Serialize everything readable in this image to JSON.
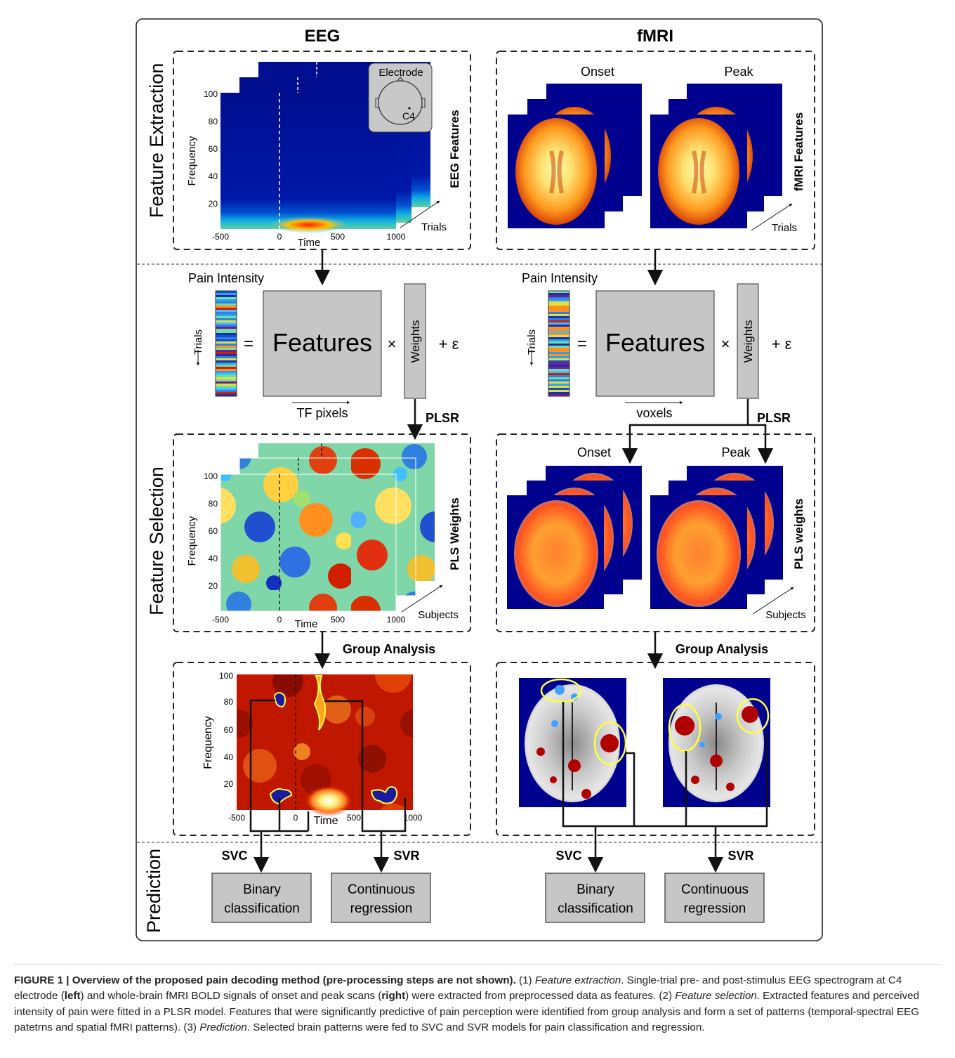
{
  "columns": {
    "eeg": "EEG",
    "fmri": "fMRI"
  },
  "stages": {
    "extraction": "Feature Extraction",
    "selection": "Feature Selection",
    "prediction": "Prediction"
  },
  "eeg_extraction": {
    "side_label": "EEG Features",
    "trials": "Trials",
    "electrode": "Electrode",
    "channel": "C4",
    "ylabel": "Frequency",
    "xlabel": "Time",
    "yticks": [
      "100",
      "80",
      "60",
      "40",
      "20"
    ],
    "xticks": [
      "-500",
      "0",
      "500",
      "1000"
    ]
  },
  "fmri_extraction": {
    "onset": "Onset",
    "peak": "Peak",
    "side_label": "fMRI Features",
    "trials": "Trials"
  },
  "eeg_model": {
    "pain": "Pain Intensity",
    "trials": "Trials",
    "equals": "=",
    "features": "Features",
    "times": "×",
    "weights": "Weights",
    "error": "+ ε",
    "pixels": "TF pixels",
    "plsr": "PLSR"
  },
  "fmri_model": {
    "pain": "Pain Intensity",
    "trials": "Trials",
    "equals": "=",
    "features": "Features",
    "times": "×",
    "weights": "Weights",
    "error": "+ ε",
    "pixels": "voxels",
    "plsr": "PLSR"
  },
  "eeg_selection": {
    "side_label": "PLS Weights",
    "subjects": "Subjects",
    "ylabel": "Frequency",
    "xlabel": "Time",
    "yticks": [
      "100",
      "80",
      "60",
      "40",
      "20"
    ],
    "xticks": [
      "-500",
      "0",
      "500",
      "1000"
    ]
  },
  "fmri_selection": {
    "onset": "Onset",
    "peak": "Peak",
    "side_label": "PLS weights",
    "subjects": "Subjects"
  },
  "group": {
    "eeg": "Group Analysis",
    "fmri": "Group Analysis"
  },
  "eeg_group": {
    "ylabel": "Frequency",
    "xlabel": "Time",
    "yticks": [
      "100",
      "80",
      "60",
      "40",
      "20"
    ],
    "xticks": [
      "-500",
      "0",
      "500",
      "1000"
    ]
  },
  "prediction": {
    "svc": "SVC",
    "svr": "SVR",
    "binary": [
      "Binary",
      "classification"
    ],
    "continuous": [
      "Continuous",
      "regression"
    ]
  },
  "caption": {
    "title": "FIGURE 1 | Overview of the proposed pain decoding method (pre-processing steps are not shown).",
    "p1": " (1) ",
    "fe": "Feature extraction",
    "p2": ". Single-trial pre- and post-stimulus EEG spectrogram at C4 electrode (",
    "left": "left",
    "p3": ") and whole-brain fMRI BOLD signals of onset and peak scans (",
    "right": "right",
    "p4": ") were extracted from preprocessed data as features. (2) ",
    "fs": "Feature selection",
    "p5": ". Extracted features and perceived intensity of pain were fitted in a PLSR model. Features that were significantly predictive of pain perception were identified from group analysis and form a set of patterns (temporal-spectral EEG patetrns and spatial fMRI patterns). (3) ",
    "pr": "Prediction",
    "p6": ". Selected brain patterns were fed to SVC and SVR models for pain classification and regression."
  },
  "colors": {
    "dark_blue": "#00008f",
    "red": "#b00000",
    "yellow": "#ffff40",
    "gray": "#c6c6c6"
  }
}
